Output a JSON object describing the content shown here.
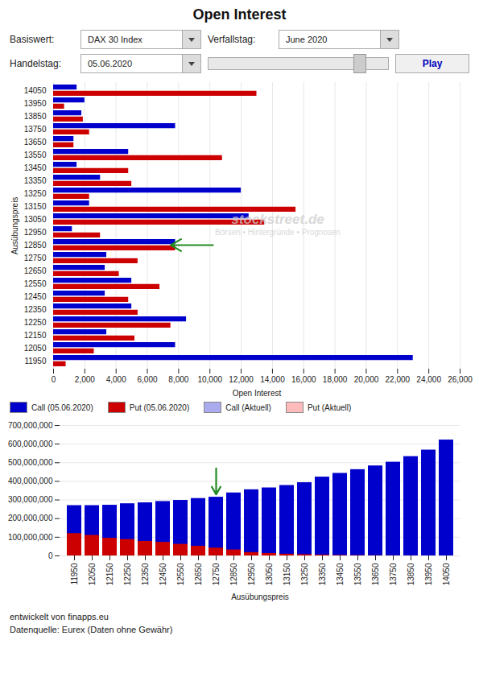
{
  "chart_data": [
    {
      "type": "bar",
      "orientation": "horizontal",
      "title": "Open Interest",
      "xlabel": "Open Interest",
      "ylabel": "Ausübungspreis",
      "categories": [
        14050,
        13950,
        13850,
        13750,
        13650,
        13550,
        13450,
        13350,
        13250,
        13150,
        13050,
        12950,
        12850,
        12750,
        12650,
        12550,
        12450,
        12350,
        12250,
        12150,
        12050,
        11950
      ],
      "series": [
        {
          "name": "Call (05.06.2020)",
          "color": "#0000cc",
          "values": [
            1500,
            2000,
            1800,
            7800,
            1300,
            4800,
            1500,
            3000,
            12000,
            2300,
            12500,
            1200,
            7800,
            3400,
            3300,
            5000,
            3300,
            5000,
            8500,
            3400,
            7800,
            23000
          ]
        },
        {
          "name": "Put (05.06.2020)",
          "color": "#cc0000",
          "values": [
            13000,
            700,
            1900,
            2300,
            1300,
            10800,
            4800,
            5000,
            2300,
            15500,
            13500,
            3000,
            7800,
            5400,
            4200,
            6800,
            4800,
            5400,
            7500,
            5200,
            2600,
            800
          ]
        },
        {
          "name": "Call (Aktuell)",
          "color": "#aaaaee",
          "values": [
            null,
            null,
            null,
            null,
            null,
            null,
            null,
            null,
            null,
            null,
            null,
            null,
            null,
            null,
            null,
            null,
            null,
            null,
            null,
            null,
            null,
            null
          ]
        },
        {
          "name": "Put (Aktuell)",
          "color": "#ffbbbb",
          "values": [
            null,
            null,
            null,
            null,
            null,
            null,
            null,
            null,
            null,
            null,
            null,
            null,
            null,
            null,
            null,
            null,
            null,
            null,
            null,
            null,
            null,
            null
          ]
        }
      ],
      "xlim": [
        0,
        26000
      ],
      "xticks": [
        0,
        {
          "value": 2000,
          "label": "2,000"
        },
        {
          "value": 4000,
          "label": "4,000"
        },
        {
          "value": 6000,
          "label": "6,000"
        },
        {
          "value": 8000,
          "label": "8,000"
        },
        {
          "value": 10000,
          "label": "10,000"
        },
        {
          "value": 12000,
          "label": "12,000"
        },
        {
          "value": 14000,
          "label": "14,000"
        },
        {
          "value": 16000,
          "label": "16,000"
        },
        {
          "value": 18000,
          "label": "18,000"
        },
        {
          "value": 20000,
          "label": "20,000"
        },
        {
          "value": 22000,
          "label": "22,000"
        },
        {
          "value": 24000,
          "label": "24,000"
        },
        {
          "value": 26000,
          "label": "26,000"
        }
      ],
      "grid": true,
      "legend": "bottom",
      "annotations": [
        {
          "type": "label",
          "text": "Basiswert:"
        },
        {
          "type": "dropdown",
          "text": "DAX 30 Index"
        },
        {
          "type": "label",
          "text": "Verfallstag:"
        },
        {
          "type": "dropdown",
          "text": "June 2020"
        },
        {
          "type": "label",
          "text": "Handelstag:"
        },
        {
          "type": "dropdown",
          "text": "05.06.2020"
        },
        {
          "type": "button",
          "text": "Play"
        },
        {
          "type": "watermark",
          "text": "stockstreet.de"
        },
        {
          "type": "watermark",
          "text": "Börsen • Hintergründe • Prognosen"
        },
        {
          "type": "arrow",
          "y": 12850,
          "x_from": 10200,
          "x_to": 7500,
          "color": "#228B22"
        }
      ]
    },
    {
      "type": "bar",
      "stacked": false,
      "xlabel": "Ausübungspreis",
      "categories": [
        11950,
        12050,
        12150,
        12250,
        12350,
        12450,
        12550,
        12650,
        12750,
        12850,
        12950,
        13050,
        13150,
        13250,
        13350,
        13450,
        13550,
        13650,
        13750,
        13850,
        13950,
        14050
      ],
      "series": [
        {
          "color": "#0000cc",
          "values": [
            270000000,
            270000000,
            272000000,
            280000000,
            285000000,
            292000000,
            298000000,
            308000000,
            315000000,
            338000000,
            355000000,
            365000000,
            378000000,
            393000000,
            423000000,
            443000000,
            463000000,
            483000000,
            503000000,
            533000000,
            568000000,
            622000000
          ]
        },
        {
          "color": "#cc0000",
          "values": [
            120000000,
            110000000,
            95000000,
            88000000,
            78000000,
            73000000,
            62000000,
            52000000,
            42000000,
            32000000,
            18000000,
            13000000,
            9000000,
            7000000,
            4500000,
            2500000,
            1800000,
            1200000,
            800000,
            400000,
            150000,
            80000
          ]
        }
      ],
      "ylim": [
        0,
        700000000
      ],
      "yticks": [
        0,
        {
          "value": 100000000,
          "label": "100,000,000"
        },
        {
          "value": 200000000,
          "label": "200,000,000"
        },
        {
          "value": 300000000,
          "label": "300,000,000"
        },
        {
          "value": 400000000,
          "label": "400,000,000"
        },
        {
          "value": 500000000,
          "label": "500,000,000"
        },
        {
          "value": 600000000,
          "label": "600,000,000"
        },
        {
          "value": 700000000,
          "label": "700,000,000"
        }
      ],
      "grid": true,
      "annotations": [
        {
          "type": "arrow",
          "x": 12750,
          "y_from": 470000000,
          "y_to": 330000000,
          "color": "#228B22"
        },
        {
          "type": "footer",
          "text": "entwickelt von finapps.eu"
        },
        {
          "type": "footer",
          "text": "Datenquelle: Eurex (Daten ohne Gewähr)"
        }
      ]
    }
  ]
}
